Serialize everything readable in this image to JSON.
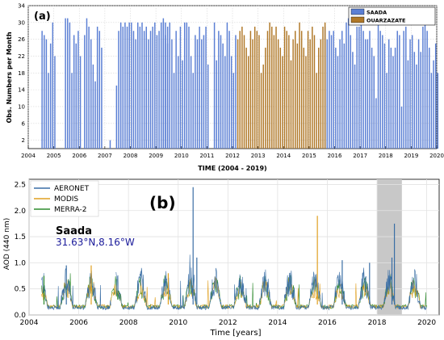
{
  "chart_data": [
    {
      "type": "bar",
      "panel_label": "(a)",
      "xlabel": "TIME (2004 - 2019)",
      "ylabel": "Obs. Numbers per Month",
      "xlim": [
        2004,
        2020
      ],
      "ylim": [
        0,
        34
      ],
      "x_ticks": [
        2004,
        2005,
        2006,
        2007,
        2008,
        2009,
        2010,
        2011,
        2012,
        2013,
        2014,
        2015,
        2016,
        2017,
        2018,
        2019,
        2020
      ],
      "y_ticks": [
        2,
        6,
        10,
        14,
        18,
        22,
        26,
        30,
        34
      ],
      "grid": true,
      "legend_position": "top-right",
      "series": [
        {
          "name": "SAADA",
          "color": "#5b7fd4",
          "segments": [
            {
              "start": [
                2004,
                7
              ],
              "values": [
                28,
                27,
                26,
                18,
                25,
                30,
                22
              ]
            },
            {
              "start": [
                2005,
                6
              ],
              "values": [
                31,
                31,
                30,
                18,
                27,
                25,
                28,
                22
              ]
            },
            {
              "start": [
                2006,
                3
              ],
              "values": [
                27,
                31,
                29,
                26,
                20,
                16,
                29,
                28,
                24
              ]
            },
            {
              "start": [
                2007,
                3
              ],
              "values": [
                2
              ]
            },
            {
              "start": [
                2007,
                6
              ],
              "values": [
                15,
                28,
                30,
                29,
                30,
                29,
                30,
                30,
                28,
                26,
                30,
                29,
                30,
                28,
                29,
                26,
                28,
                29,
                30,
                27,
                28,
                30,
                31,
                30,
                25
              ]
            },
            {
              "start": [
                2009,
                4
              ],
              "values": [
                30,
                27,
                29,
                30,
                26,
                18,
                28,
                22,
                29,
                21,
                30,
                30,
                29,
                22,
                18,
                27,
                26,
                29,
                26,
                27,
                29,
                20
              ]
            },
            {
              "start": [
                2011,
                4
              ],
              "values": [
                30,
                21,
                28,
                27,
                25,
                22,
                30,
                28,
                22,
                18,
                27
              ]
            },
            {
              "start": [
                2015,
                8
              ],
              "values": [
                29,
                26,
                28,
                27,
                28,
                24,
                22,
                26,
                28,
                25,
                30,
                31,
                27,
                23,
                20,
                29,
                29,
                30,
                28,
                26,
                26,
                28,
                24,
                22,
                12,
                30,
                28,
                27,
                25,
                18,
                26,
                24,
                22,
                24,
                28,
                27,
                10,
                28,
                29,
                21,
                26,
                27,
                23,
                20,
                26,
                23,
                29,
                30,
                28,
                24,
                18,
                21,
                25,
                18
              ]
            }
          ]
        },
        {
          "name": "OUARZAZATE",
          "color": "#b07828",
          "segments": [
            {
              "start": [
                2012,
                3
              ],
              "values": [
                26,
                28,
                29,
                27,
                24,
                22,
                28,
                26,
                29,
                28,
                27,
                18,
                20,
                24,
                28,
                30,
                29,
                27,
                29,
                26,
                24,
                22,
                29,
                28,
                27,
                21,
                26,
                28,
                25,
                30,
                28,
                24,
                22,
                28,
                26,
                29,
                27,
                18,
                24,
                26,
                29,
                30
              ]
            }
          ]
        }
      ]
    },
    {
      "type": "line",
      "panel_label": "(b)",
      "xlabel": "Time [years]",
      "ylabel": "AOD (440 nm)",
      "xlim": [
        2004,
        2020.5
      ],
      "ylim": [
        0,
        2.6
      ],
      "x_ticks": [
        2004,
        2006,
        2008,
        2010,
        2012,
        2014,
        2016,
        2018,
        2020
      ],
      "y_ticks": [
        0.0,
        0.5,
        1.0,
        1.5,
        2.0,
        2.5
      ],
      "grid": true,
      "legend_position": "top-left",
      "shaded_interval": [
        2018.0,
        2019.0
      ],
      "annotation_site": "Saada",
      "annotation_coords": "31.63°N,8.16°W",
      "series": [
        {
          "name": "AERONET",
          "color": "#3a6ea5"
        },
        {
          "name": "MODIS",
          "color": "#e0a020"
        },
        {
          "name": "MERRA-2",
          "color": "#2e8b2e"
        }
      ],
      "peaks": [
        {
          "series": "AERONET",
          "x": 2010.6,
          "y": 2.45
        },
        {
          "series": "MODIS",
          "x": 2015.6,
          "y": 1.9
        },
        {
          "series": "AERONET",
          "x": 2018.7,
          "y": 1.75
        },
        {
          "series": "AERONET",
          "x": 2010.75,
          "y": 1.1
        },
        {
          "series": "AERONET",
          "x": 2016.6,
          "y": 1.05
        },
        {
          "series": "AERONET",
          "x": 2017.7,
          "y": 1.0
        },
        {
          "series": "AERONET",
          "x": 2018.6,
          "y": 1.1
        },
        {
          "series": "AERONET",
          "x": 2005.5,
          "y": 0.95
        },
        {
          "series": "MODIS",
          "x": 2006.5,
          "y": 0.95
        },
        {
          "series": "MODIS",
          "x": 2009.6,
          "y": 0.8
        },
        {
          "series": "MERRA-2",
          "x": 2004.6,
          "y": 0.75
        }
      ]
    }
  ]
}
